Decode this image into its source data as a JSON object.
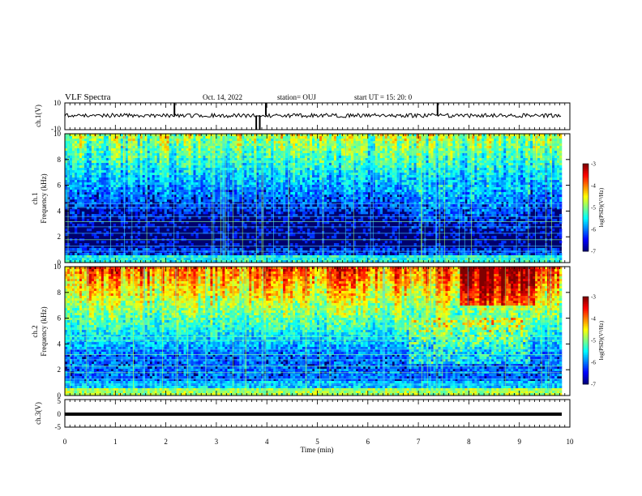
{
  "header": {
    "title": "VLF Spectra",
    "date": "Oct. 14, 2022",
    "station": "station= OUJ",
    "start": "start  UT =   15: 20: 0"
  },
  "chart_data": [
    {
      "type": "line",
      "name": "ch1-waveform",
      "ylabel": "ch.1(V)",
      "ylim": [
        -10,
        10
      ],
      "yticks": [
        "10",
        "-10"
      ],
      "baseline": 0,
      "spikes": [
        {
          "t": 2.17,
          "v": 10
        },
        {
          "t": 3.79,
          "v": -10
        },
        {
          "t": 3.86,
          "v": -10
        },
        {
          "t": 3.98,
          "v": 10
        },
        {
          "t": 7.38,
          "v": 10
        }
      ]
    },
    {
      "type": "heatmap",
      "name": "ch1-spectrogram",
      "ylabel": "ch.1\nFrequency (kHz)",
      "ylim": [
        0,
        10
      ],
      "yticks": [
        "0",
        "2",
        "4",
        "6",
        "8",
        "10"
      ],
      "colorbar": {
        "label": "log(PSD)(V²/Hz)",
        "ticks": [
          "-3",
          "-4",
          "-5",
          "-6",
          "-7"
        ],
        "range": [
          -7,
          -3
        ]
      }
    },
    {
      "type": "heatmap",
      "name": "ch2-spectrogram",
      "ylabel": "ch.2\nFrequency (kHz)",
      "ylim": [
        0,
        10
      ],
      "yticks": [
        "0",
        "2",
        "4",
        "6",
        "8",
        "10"
      ],
      "colorbar": {
        "label": "log(PSD)(V²/Hz)",
        "ticks": [
          "-3",
          "-4",
          "-5",
          "-6",
          "-7"
        ],
        "range": [
          -7,
          -3
        ]
      }
    },
    {
      "type": "line",
      "name": "ch3-waveform",
      "ylabel": "ch.3(V)",
      "ylim": [
        -5,
        5
      ],
      "yticks": [
        "5",
        "0",
        "-5"
      ],
      "baseline": 0
    }
  ],
  "xaxis": {
    "label": "Time (min)",
    "xlim": [
      0,
      10
    ],
    "ticks": [
      "0",
      "1",
      "2",
      "3",
      "4",
      "5",
      "6",
      "7",
      "8",
      "9",
      "10"
    ]
  },
  "colors": {
    "ink": "#000000",
    "background": "#ffffff"
  }
}
